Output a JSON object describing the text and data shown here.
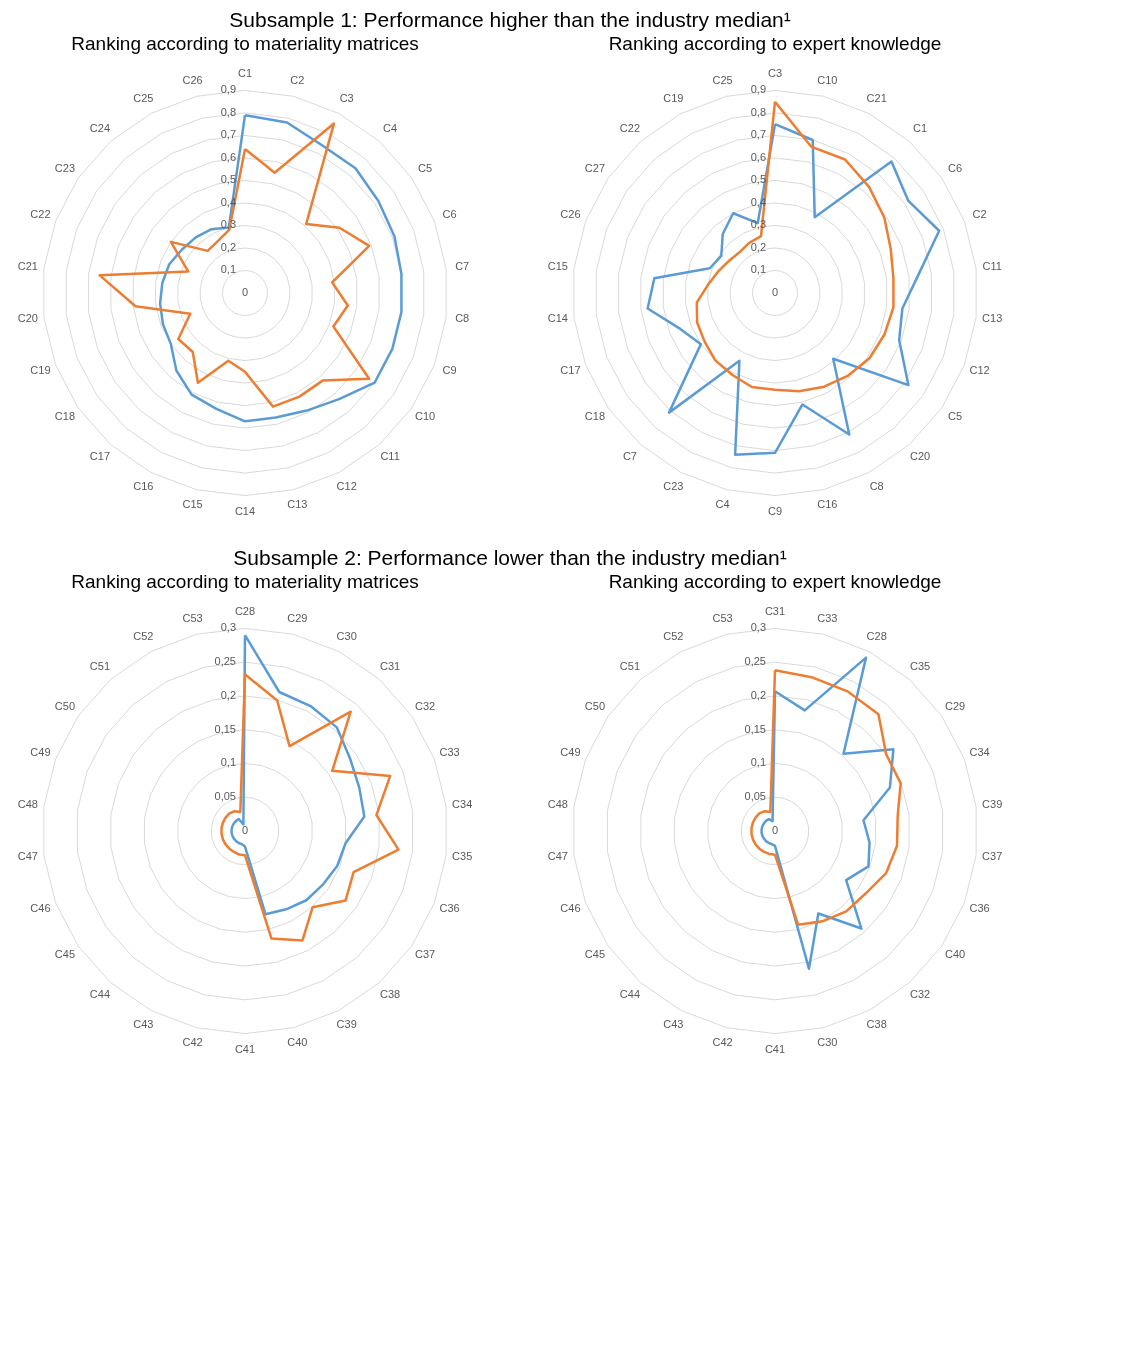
{
  "chart_data": [
    {
      "type": "radar",
      "title": "Ranking according to materiality matrices",
      "annotations": [
        "Subsample 1: Performance higher than the industry median¹"
      ],
      "grid": true,
      "categories": [
        "C1",
        "C2",
        "C3",
        "C4",
        "C5",
        "C6",
        "C7",
        "C8",
        "C9",
        "C10",
        "C11",
        "C12",
        "C13",
        "C14",
        "C15",
        "C16",
        "C17",
        "C18",
        "C19",
        "C20",
        "C21",
        "C22",
        "C23",
        "C24",
        "C25",
        "C26"
      ],
      "ylim": [
        0,
        0.9
      ],
      "yticks": [
        0,
        {
          "value": 0.1,
          "label": "0,1"
        },
        {
          "value": 0.2,
          "label": "0,2"
        },
        {
          "value": 0.3,
          "label": "0,3"
        },
        {
          "value": 0.4,
          "label": "0,4"
        },
        {
          "value": 0.5,
          "label": "0,5"
        },
        {
          "value": 0.6,
          "label": "0,6"
        },
        {
          "value": 0.7,
          "label": "0,7"
        },
        {
          "value": 0.8,
          "label": "0,8"
        },
        {
          "value": 0.9,
          "label": "0,9"
        }
      ],
      "series": [
        {
          "color": "#5b9bd5",
          "values": [
            0.79,
            0.78,
            0.74,
            0.74,
            0.72,
            0.71,
            0.7,
            0.7,
            0.7,
            0.7,
            0.63,
            0.59,
            0.57,
            0.57,
            0.53,
            0.51,
            0.46,
            0.4,
            0.39,
            0.38,
            0.37,
            0.36,
            0.34,
            0.33,
            0.32,
            0.3
          ]
        },
        {
          "color": "#ed7d31",
          "values": [
            0.64,
            0.55,
            0.85,
            0.41,
            0.51,
            0.59,
            0.39,
            0.46,
            0.42,
            0.67,
            0.52,
            0.52,
            0.52,
            0.35,
            0.31,
            0.45,
            0.35,
            0.36,
            0.26,
            0.49,
            0.65,
            0.27,
            0.4,
            0.25,
            0.26,
            0.29
          ]
        }
      ]
    },
    {
      "type": "radar",
      "title": "Ranking according to expert knowledge",
      "grid": true,
      "categories": [
        "C3",
        "C10",
        "C21",
        "C1",
        "C6",
        "C2",
        "C11",
        "C13",
        "C12",
        "C5",
        "C20",
        "C8",
        "C16",
        "C9",
        "C4",
        "C23",
        "C7",
        "C18",
        "C17",
        "C14",
        "C15",
        "C26",
        "C27",
        "C22",
        "C19",
        "C25"
      ],
      "ylim": [
        0,
        0.9
      ],
      "yticks": [
        0,
        {
          "value": 0.1,
          "label": "0,1"
        },
        {
          "value": 0.2,
          "label": "0,2"
        },
        {
          "value": 0.3,
          "label": "0,3"
        },
        {
          "value": 0.4,
          "label": "0,4"
        },
        {
          "value": 0.5,
          "label": "0,5"
        },
        {
          "value": 0.6,
          "label": "0,6"
        },
        {
          "value": 0.7,
          "label": "0,7"
        },
        {
          "value": 0.8,
          "label": "0,8"
        },
        {
          "value": 0.9,
          "label": "0,9"
        }
      ],
      "series": [
        {
          "color": "#5b9bd5",
          "values": [
            0.75,
            0.7,
            0.38,
            0.78,
            0.72,
            0.78,
            0.64,
            0.57,
            0.59,
            0.72,
            0.39,
            0.71,
            0.51,
            0.71,
            0.74,
            0.34,
            0.71,
            0.4,
            0.45,
            0.57,
            0.54,
            0.31,
            0.29,
            0.35,
            0.4,
            0.32
          ]
        },
        {
          "color": "#ed7d31",
          "values": [
            0.85,
            0.67,
            0.67,
            0.63,
            0.59,
            0.55,
            0.53,
            0.53,
            0.52,
            0.51,
            0.49,
            0.47,
            0.45,
            0.43,
            0.43,
            0.41,
            0.4,
            0.38,
            0.37,
            0.35,
            0.3,
            0.27,
            0.25,
            0.24,
            0.25,
            0.26
          ]
        }
      ]
    },
    {
      "type": "radar",
      "title": "Ranking according to materiality matrices",
      "annotations": [
        "Subsample 2: Performance lower than the industry median¹"
      ],
      "grid": true,
      "categories": [
        "C28",
        "C29",
        "C30",
        "C31",
        "C32",
        "C33",
        "C34",
        "C35",
        "C36",
        "C37",
        "C38",
        "C39",
        "C40",
        "C41",
        "C42",
        "C43",
        "C44",
        "C45",
        "C46",
        "C47",
        "C48",
        "C49",
        "C50",
        "C51",
        "C52",
        "C53"
      ],
      "ylim": [
        0,
        0.3
      ],
      "yticks": [
        0,
        {
          "value": 0.05,
          "label": "0,05"
        },
        {
          "value": 0.1,
          "label": "0,1"
        },
        {
          "value": 0.15,
          "label": "0,15"
        },
        {
          "value": 0.2,
          "label": "0,2"
        },
        {
          "value": 0.25,
          "label": "0,25"
        },
        {
          "value": 0.3,
          "label": "0,3"
        }
      ],
      "series": [
        {
          "color": "#5b9bd5",
          "values": [
            0.29,
            0.212,
            0.209,
            0.205,
            0.189,
            0.181,
            0.178,
            0.15,
            0.146,
            0.14,
            0.137,
            0.131,
            0.127,
            0.023,
            0.02,
            0.02,
            0.02,
            0.02,
            0.02,
            0.02,
            0.02,
            0.02,
            0.02,
            0.02,
            0.02,
            0.01
          ]
        },
        {
          "color": "#ed7d31",
          "values": [
            0.232,
            0.199,
            0.142,
            0.236,
            0.157,
            0.23,
            0.196,
            0.229,
            0.172,
            0.181,
            0.151,
            0.183,
            0.164,
            0.036,
            0.036,
            0.035,
            0.035,
            0.035,
            0.035,
            0.035,
            0.035,
            0.035,
            0.035,
            0.035,
            0.033,
            0.029
          ]
        }
      ]
    },
    {
      "type": "radar",
      "title": "Ranking according to expert knowledge",
      "grid": true,
      "categories": [
        "C31",
        "C33",
        "C28",
        "C35",
        "C29",
        "C34",
        "C39",
        "C37",
        "C36",
        "C40",
        "C32",
        "C38",
        "C30",
        "C41",
        "C42",
        "C43",
        "C44",
        "C45",
        "C46",
        "C47",
        "C48",
        "C49",
        "C50",
        "C51",
        "C52",
        "C53"
      ],
      "ylim": [
        0,
        0.3
      ],
      "yticks": [
        0,
        {
          "value": 0.05,
          "label": "0,05"
        },
        {
          "value": 0.1,
          "label": "0,1"
        },
        {
          "value": 0.15,
          "label": "0,15"
        },
        {
          "value": 0.2,
          "label": "0,2"
        },
        {
          "value": 0.25,
          "label": "0,25"
        },
        {
          "value": 0.3,
          "label": "0,3"
        }
      ],
      "series": [
        {
          "color": "#5b9bd5",
          "values": [
            0.207,
            0.184,
            0.29,
            0.153,
            0.213,
            0.182,
            0.132,
            0.141,
            0.148,
            0.128,
            0.193,
            0.138,
            0.21,
            0.022,
            0.02,
            0.02,
            0.02,
            0.02,
            0.02,
            0.02,
            0.02,
            0.02,
            0.02,
            0.02,
            0.02,
            0.015
          ]
        },
        {
          "color": "#ed7d31",
          "values": [
            0.238,
            0.234,
            0.233,
            0.231,
            0.2,
            0.199,
            0.183,
            0.182,
            0.176,
            0.163,
            0.159,
            0.151,
            0.143,
            0.035,
            0.035,
            0.035,
            0.035,
            0.035,
            0.035,
            0.035,
            0.035,
            0.035,
            0.035,
            0.035,
            0.033,
            0.029
          ]
        }
      ]
    }
  ]
}
